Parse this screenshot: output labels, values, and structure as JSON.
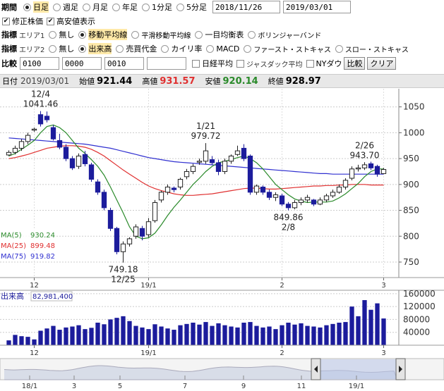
{
  "colors": {
    "up": "#222222",
    "down": "#1c1c9c",
    "ma5": "#2a8a2a",
    "ma25": "#e03030",
    "ma75": "#3030d0",
    "high": "#e03030",
    "low": "#2a8a2a"
  },
  "period": {
    "label": "期間",
    "options": [
      {
        "label": "日足",
        "selected": true
      },
      {
        "label": "週足",
        "selected": false
      },
      {
        "label": "月足",
        "selected": false
      },
      {
        "label": "年足",
        "selected": false
      },
      {
        "label": "1分足",
        "selected": false
      },
      {
        "label": "5分足",
        "selected": false
      }
    ],
    "start_date": "2018/11/26",
    "end_date": "2019/03/01"
  },
  "options_row": {
    "adjusted": "修正株価",
    "show_high_low": "高安値表示"
  },
  "indicator1": {
    "label": "指標",
    "area": "エリア1",
    "options": [
      {
        "label": "無し",
        "selected": false
      },
      {
        "label": "移動平均線",
        "selected": true
      },
      {
        "label": "平滑移動平均線",
        "selected": false
      },
      {
        "label": "一目均衡表",
        "selected": false
      },
      {
        "label": "ボリンジャーバンド",
        "selected": false
      }
    ]
  },
  "indicator2": {
    "label": "指標",
    "area": "エリア2",
    "options": [
      {
        "label": "無し",
        "selected": false
      },
      {
        "label": "出来高",
        "selected": true
      },
      {
        "label": "売買代金",
        "selected": false
      },
      {
        "label": "カイリ率",
        "selected": false
      },
      {
        "label": "MACD",
        "selected": false
      },
      {
        "label": "ファースト・ストキャス",
        "selected": false
      },
      {
        "label": "スロー・ストキャス",
        "selected": false
      }
    ]
  },
  "compare": {
    "label": "比較",
    "codes": [
      "0100",
      "0000",
      "0010",
      ""
    ],
    "nikkei_avg": "日経平均",
    "jasdaq_avg": "ジャスダック平均",
    "ny_dow": "NYダウ",
    "compare_button": "比較",
    "clear_button": "クリア"
  },
  "info": {
    "date_label": "日付",
    "date": "2019/03/01",
    "open_label": "始値",
    "open": "921.44",
    "high_label": "高値",
    "high": "931.57",
    "low_label": "安値",
    "low": "920.14",
    "close_label": "終値",
    "close": "928.97"
  },
  "ma_legend": [
    {
      "name": "MA(5)",
      "value": "930.24"
    },
    {
      "name": "MA(25)",
      "value": "899.48"
    },
    {
      "name": "MA(75)",
      "value": "919.82"
    }
  ],
  "volume_legend": {
    "name": "出来高",
    "value": "82,981,400"
  },
  "price_annotations": [
    {
      "date": "12/4",
      "value": "1041.46"
    },
    {
      "date": "1/21",
      "value": "979.72"
    },
    {
      "date": "2/26",
      "value": "943.70"
    },
    {
      "date": "12/25",
      "value": "749.18"
    },
    {
      "date": "2/8",
      "value": "849.86"
    }
  ],
  "navigator_ticks": [
    "18/1",
    "3",
    "5",
    "7",
    "9",
    "11",
    "19/1"
  ],
  "chart_data": {
    "type": "candlestick",
    "y_ticks": [
      750,
      800,
      850,
      900,
      950,
      1000,
      1050
    ],
    "ylim": [
      720,
      1085
    ],
    "x_ticks": [
      "12",
      "19/1",
      "2",
      "3"
    ],
    "volume_ticks": [
      40000,
      80000,
      120000,
      160000
    ],
    "volume_ylim": [
      0,
      175000
    ],
    "candles": [
      {
        "o": 957,
        "h": 966,
        "l": 955,
        "c": 962,
        "v": 15000
      },
      {
        "o": 962,
        "h": 975,
        "l": 958,
        "c": 970,
        "v": 32000
      },
      {
        "o": 970,
        "h": 988,
        "l": 965,
        "c": 983,
        "v": 28000
      },
      {
        "o": 983,
        "h": 1000,
        "l": 978,
        "c": 995,
        "v": 26000
      },
      {
        "o": 1005,
        "h": 1010,
        "l": 1002,
        "c": 1007,
        "v": 18000
      },
      {
        "o": 1035,
        "h": 1042,
        "l": 1012,
        "c": 1017,
        "v": 45000
      },
      {
        "o": 1032,
        "h": 1041,
        "l": 1020,
        "c": 1025,
        "v": 52000
      },
      {
        "o": 1010,
        "h": 1015,
        "l": 985,
        "c": 988,
        "v": 60000
      },
      {
        "o": 985,
        "h": 998,
        "l": 968,
        "c": 972,
        "v": 48000
      },
      {
        "o": 972,
        "h": 978,
        "l": 945,
        "c": 950,
        "v": 55000
      },
      {
        "o": 950,
        "h": 955,
        "l": 928,
        "c": 932,
        "v": 58000
      },
      {
        "o": 935,
        "h": 960,
        "l": 930,
        "c": 955,
        "v": 62000
      },
      {
        "o": 958,
        "h": 965,
        "l": 935,
        "c": 940,
        "v": 50000
      },
      {
        "o": 938,
        "h": 942,
        "l": 905,
        "c": 910,
        "v": 54000
      },
      {
        "o": 905,
        "h": 910,
        "l": 880,
        "c": 885,
        "v": 70000
      },
      {
        "o": 885,
        "h": 890,
        "l": 850,
        "c": 855,
        "v": 65000
      },
      {
        "o": 850,
        "h": 855,
        "l": 810,
        "c": 815,
        "v": 80000
      },
      {
        "o": 815,
        "h": 818,
        "l": 765,
        "c": 770,
        "v": 85000
      },
      {
        "o": 770,
        "h": 790,
        "l": 749,
        "c": 785,
        "v": 90000
      },
      {
        "o": 785,
        "h": 798,
        "l": 780,
        "c": 795,
        "v": 75000
      },
      {
        "o": 800,
        "h": 823,
        "l": 795,
        "c": 818,
        "v": 60000
      },
      {
        "o": 815,
        "h": 820,
        "l": 792,
        "c": 800,
        "v": 55000
      },
      {
        "o": 803,
        "h": 835,
        "l": 798,
        "c": 828,
        "v": 50000
      },
      {
        "o": 830,
        "h": 870,
        "l": 826,
        "c": 865,
        "v": 65000
      },
      {
        "o": 870,
        "h": 888,
        "l": 865,
        "c": 885,
        "v": 58000
      },
      {
        "o": 885,
        "h": 900,
        "l": 880,
        "c": 895,
        "v": 52000
      },
      {
        "o": 893,
        "h": 896,
        "l": 885,
        "c": 890,
        "v": 48000
      },
      {
        "o": 895,
        "h": 913,
        "l": 890,
        "c": 910,
        "v": 62000
      },
      {
        "o": 915,
        "h": 930,
        "l": 910,
        "c": 925,
        "v": 66000
      },
      {
        "o": 925,
        "h": 940,
        "l": 920,
        "c": 935,
        "v": 70000
      },
      {
        "o": 943,
        "h": 950,
        "l": 938,
        "c": 945,
        "v": 64000
      },
      {
        "o": 945,
        "h": 980,
        "l": 940,
        "c": 965,
        "v": 72000
      },
      {
        "o": 948,
        "h": 955,
        "l": 938,
        "c": 942,
        "v": 60000
      },
      {
        "o": 942,
        "h": 948,
        "l": 918,
        "c": 925,
        "v": 68000
      },
      {
        "o": 925,
        "h": 950,
        "l": 920,
        "c": 945,
        "v": 62000
      },
      {
        "o": 945,
        "h": 958,
        "l": 940,
        "c": 955,
        "v": 58000
      },
      {
        "o": 958,
        "h": 975,
        "l": 955,
        "c": 965,
        "v": 55000
      },
      {
        "o": 970,
        "h": 978,
        "l": 945,
        "c": 950,
        "v": 70000
      },
      {
        "o": 955,
        "h": 958,
        "l": 880,
        "c": 885,
        "v": 72000
      },
      {
        "o": 885,
        "h": 900,
        "l": 880,
        "c": 897,
        "v": 60000
      },
      {
        "o": 895,
        "h": 898,
        "l": 880,
        "c": 885,
        "v": 55000
      },
      {
        "o": 885,
        "h": 890,
        "l": 870,
        "c": 875,
        "v": 58000
      },
      {
        "o": 875,
        "h": 885,
        "l": 868,
        "c": 880,
        "v": 50000
      },
      {
        "o": 878,
        "h": 882,
        "l": 858,
        "c": 862,
        "v": 62000
      },
      {
        "o": 862,
        "h": 866,
        "l": 850,
        "c": 855,
        "v": 70000
      },
      {
        "o": 855,
        "h": 870,
        "l": 852,
        "c": 865,
        "v": 64000
      },
      {
        "o": 865,
        "h": 875,
        "l": 860,
        "c": 870,
        "v": 68000
      },
      {
        "o": 870,
        "h": 880,
        "l": 865,
        "c": 875,
        "v": 60000
      },
      {
        "o": 870,
        "h": 872,
        "l": 858,
        "c": 862,
        "v": 58000
      },
      {
        "o": 862,
        "h": 875,
        "l": 860,
        "c": 870,
        "v": 55000
      },
      {
        "o": 870,
        "h": 882,
        "l": 866,
        "c": 878,
        "v": 62000
      },
      {
        "o": 878,
        "h": 890,
        "l": 874,
        "c": 885,
        "v": 66000
      },
      {
        "o": 885,
        "h": 900,
        "l": 882,
        "c": 895,
        "v": 70000
      },
      {
        "o": 895,
        "h": 912,
        "l": 890,
        "c": 908,
        "v": 72000
      },
      {
        "o": 912,
        "h": 935,
        "l": 908,
        "c": 930,
        "v": 120000
      },
      {
        "o": 930,
        "h": 938,
        "l": 925,
        "c": 932,
        "v": 90000
      },
      {
        "o": 932,
        "h": 943,
        "l": 928,
        "c": 938,
        "v": 140000
      },
      {
        "o": 940,
        "h": 944,
        "l": 928,
        "c": 932,
        "v": 110000
      },
      {
        "o": 935,
        "h": 938,
        "l": 915,
        "c": 920,
        "v": 130000
      },
      {
        "o": 921,
        "h": 932,
        "l": 920,
        "c": 929,
        "v": 83000
      }
    ],
    "ma5": [
      955,
      960,
      968,
      976,
      985,
      1000,
      1012,
      1015,
      1010,
      1000,
      985,
      970,
      960,
      948,
      935,
      918,
      895,
      870,
      845,
      818,
      800,
      795,
      797,
      806,
      822,
      840,
      856,
      870,
      885,
      900,
      912,
      925,
      935,
      942,
      945,
      948,
      952,
      955,
      950,
      942,
      930,
      915,
      900,
      890,
      880,
      872,
      868,
      865,
      866,
      866,
      866,
      868,
      874,
      882,
      892,
      902,
      915,
      925,
      930,
      930
    ],
    "ma25": [
      950,
      952,
      955,
      958,
      962,
      966,
      970,
      972,
      974,
      975,
      975,
      974,
      972,
      968,
      962,
      955,
      946,
      937,
      928,
      920,
      912,
      904,
      897,
      892,
      888,
      885,
      882,
      880,
      879,
      879,
      880,
      881,
      882,
      884,
      886,
      888,
      890,
      892,
      893,
      893,
      892,
      891,
      891,
      892,
      893,
      894,
      895,
      896,
      897,
      897,
      898,
      898,
      899,
      899,
      900,
      900,
      900,
      899,
      899,
      899
    ],
    "ma75": [
      990,
      989,
      988,
      987,
      986,
      985,
      984,
      983,
      982,
      981,
      980,
      979,
      978,
      976,
      974,
      972,
      970,
      967,
      964,
      961,
      958,
      955,
      952,
      950,
      948,
      946,
      944,
      943,
      942,
      941,
      940,
      939,
      938,
      937,
      936,
      935,
      934,
      933,
      932,
      931,
      930,
      929,
      928,
      927,
      926,
      925,
      924,
      923,
      922,
      921,
      921,
      920,
      920,
      920,
      920,
      920,
      920,
      920,
      920,
      920
    ]
  }
}
